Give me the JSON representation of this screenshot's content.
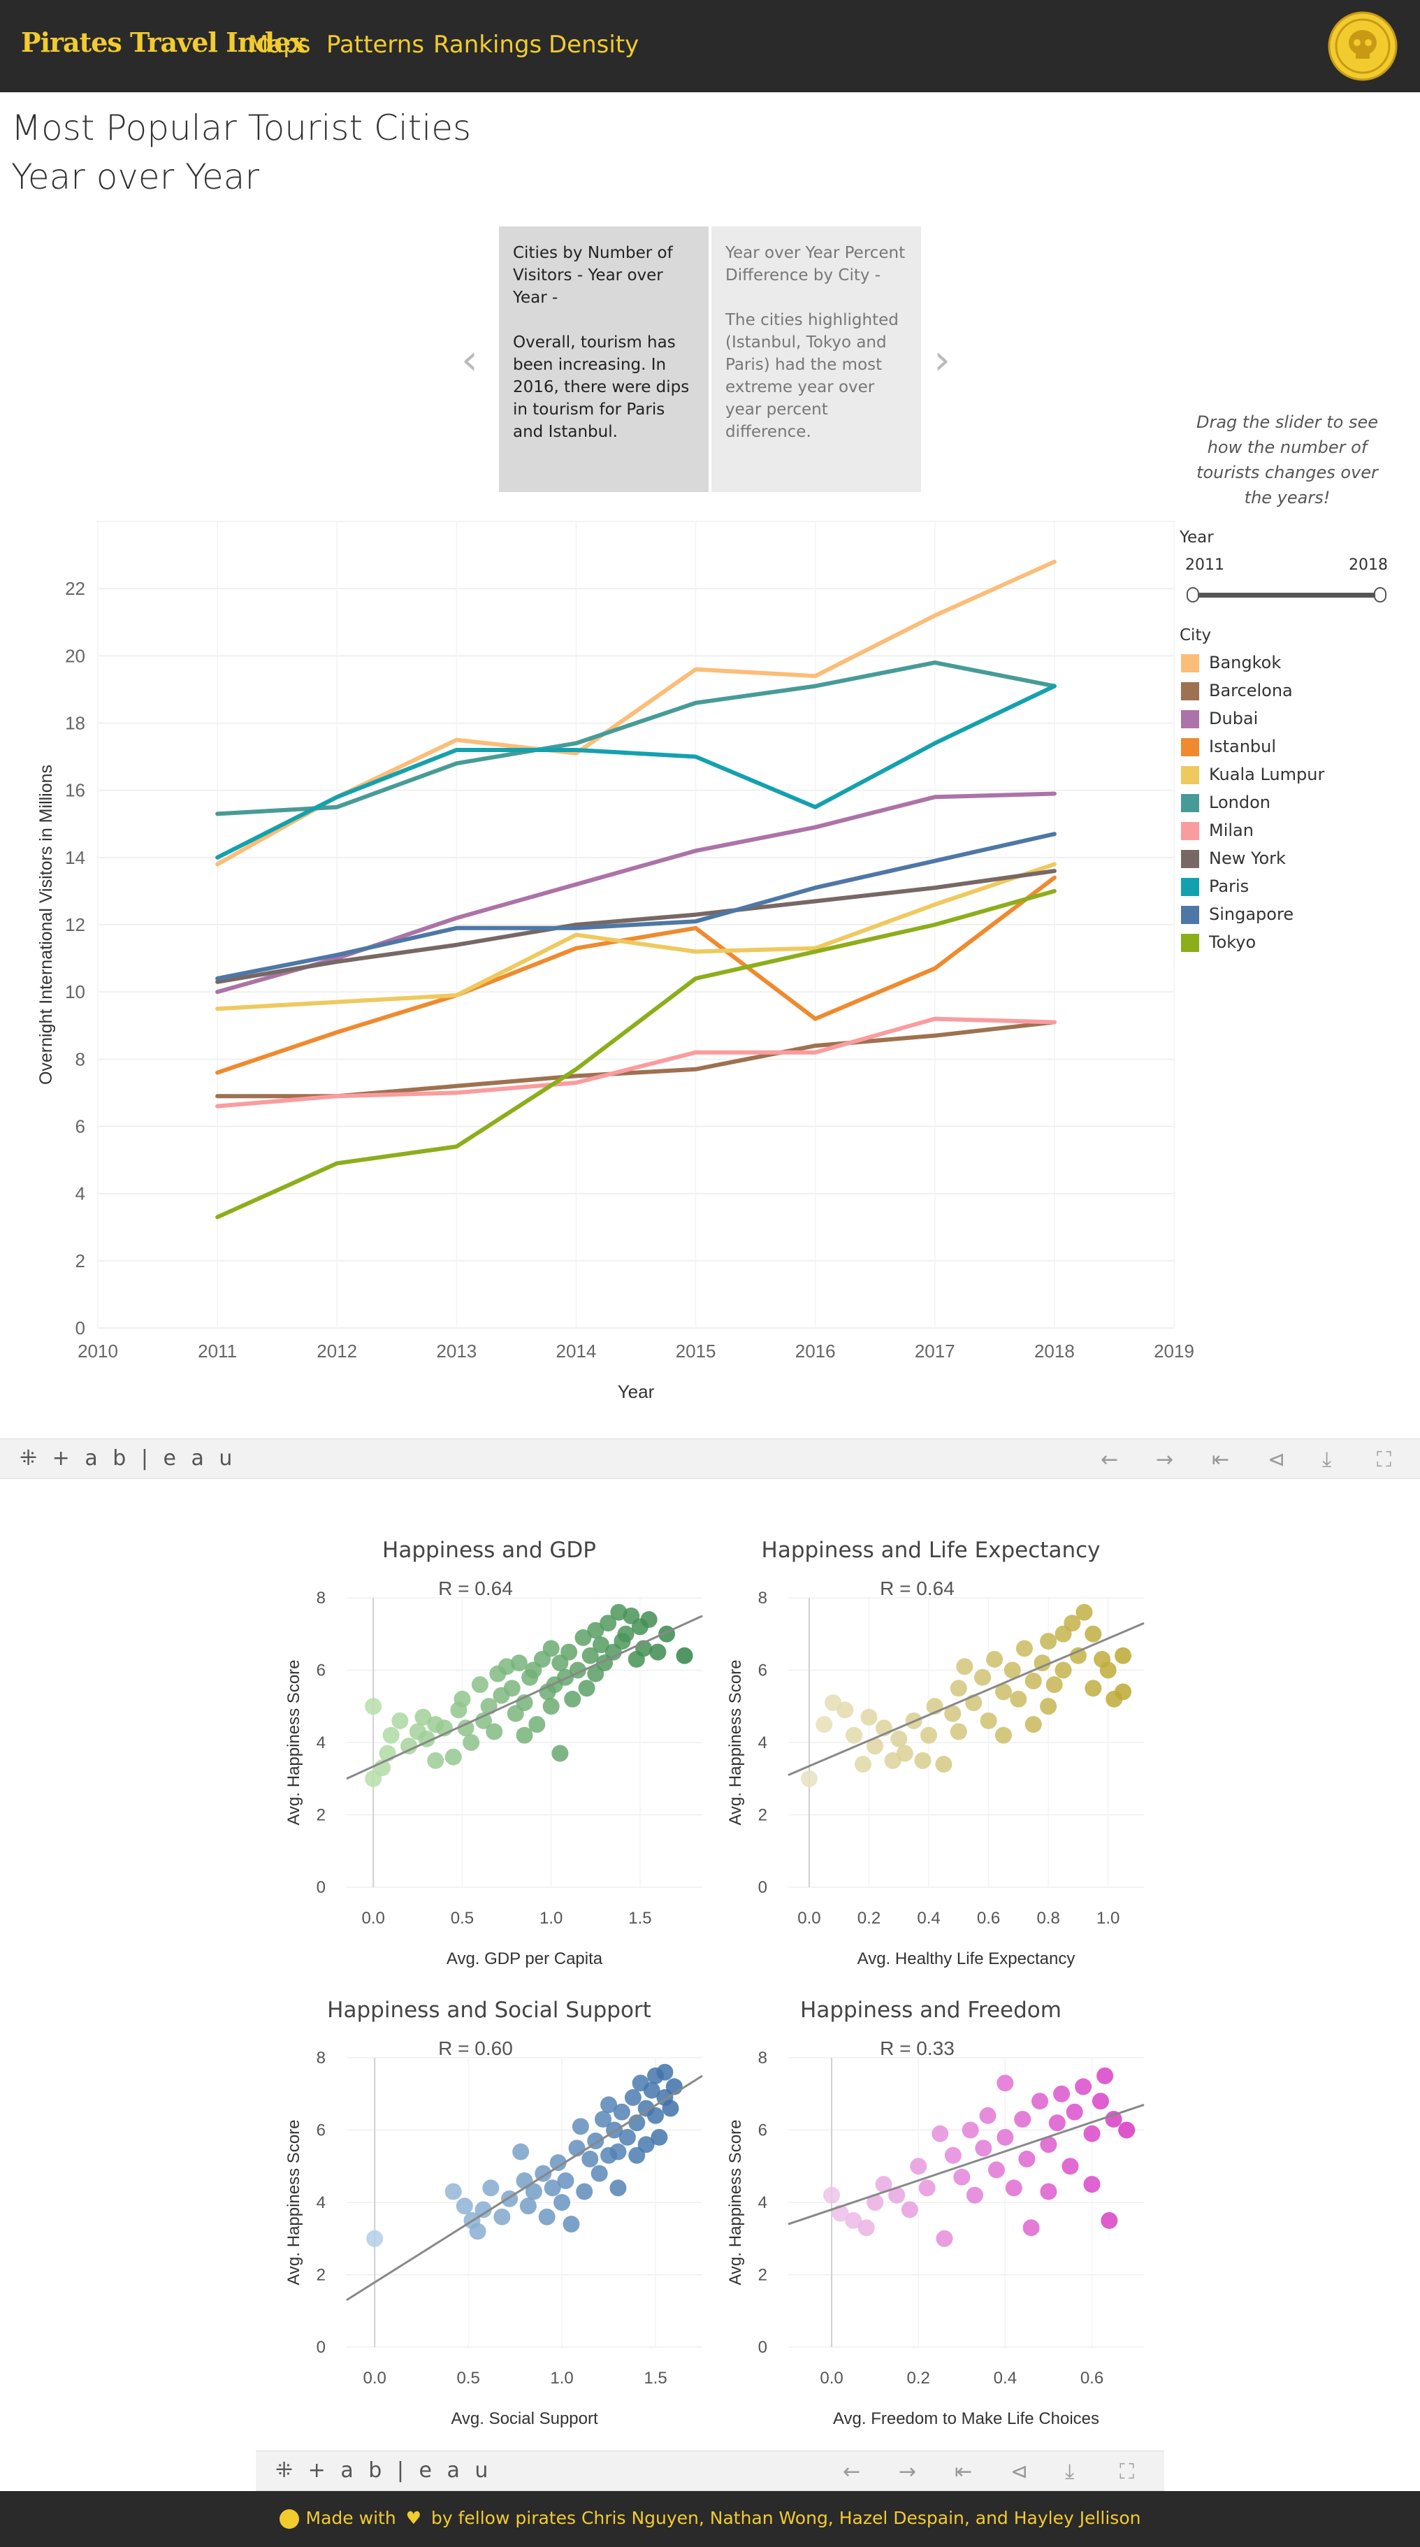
{
  "nav": {
    "brand": "Pirates Travel Index",
    "links": [
      "Maps",
      "Patterns",
      "Rankings",
      "Density"
    ]
  },
  "page": {
    "title_line1": "Most Popular Tourist Cities",
    "title_line2": "Year over Year"
  },
  "story": {
    "cards": [
      {
        "heading": "Cities by Number of Visitors - Year over Year -",
        "body": "Overall, tourism has been increasing. In 2016, there were  dips in tourism for Paris and Istanbul."
      },
      {
        "heading": "Year over Year Percent Difference by City -",
        "body": "The cities highlighted (Istanbul, Tokyo and Paris) had the most extreme year over year percent difference."
      }
    ],
    "prev_arrow": "‹",
    "next_arrow": "›"
  },
  "hint": "Drag the slider to see how the number of tourists changes over the years!",
  "filters": {
    "year_label": "Year",
    "year_min": "2011",
    "year_max": "2018",
    "city_label": "City"
  },
  "chart_data": [
    {
      "type": "line",
      "title": "",
      "xlabel": "Year",
      "ylabel": "Overnight International Visitors in Millions",
      "xlim": [
        2010,
        2019
      ],
      "ylim": [
        0,
        24
      ],
      "x_ticks": [
        2010,
        2011,
        2012,
        2013,
        2014,
        2015,
        2016,
        2017,
        2018,
        2019
      ],
      "y_ticks": [
        0,
        2,
        4,
        6,
        8,
        10,
        12,
        14,
        16,
        18,
        20,
        22
      ],
      "grid": true,
      "legend": "right",
      "x": [
        2011,
        2012,
        2013,
        2014,
        2015,
        2016,
        2017,
        2018
      ],
      "series": [
        {
          "name": "Bangkok",
          "color": "#fbbd78",
          "values": [
            13.8,
            15.8,
            17.5,
            17.1,
            19.6,
            19.4,
            21.2,
            22.8
          ]
        },
        {
          "name": "Barcelona",
          "color": "#9e7150",
          "values": [
            6.9,
            6.9,
            7.2,
            7.5,
            7.7,
            8.4,
            8.7,
            9.1
          ]
        },
        {
          "name": "Dubai",
          "color": "#ac73a8",
          "values": [
            10.0,
            11.0,
            12.2,
            13.2,
            14.2,
            14.9,
            15.8,
            15.9
          ]
        },
        {
          "name": "Istanbul",
          "color": "#ef8a2e",
          "values": [
            7.6,
            8.8,
            9.9,
            11.3,
            11.9,
            9.2,
            10.7,
            13.4
          ]
        },
        {
          "name": "Kuala Lumpur",
          "color": "#eec95e",
          "values": [
            9.5,
            9.7,
            9.9,
            11.7,
            11.2,
            11.3,
            12.6,
            13.8
          ]
        },
        {
          "name": "London",
          "color": "#479b97",
          "values": [
            15.3,
            15.5,
            16.8,
            17.4,
            18.6,
            19.1,
            19.8,
            19.1
          ]
        },
        {
          "name": "Milan",
          "color": "#fa9c9e",
          "values": [
            6.6,
            6.9,
            7.0,
            7.3,
            8.2,
            8.2,
            9.2,
            9.1
          ]
        },
        {
          "name": "New York",
          "color": "#776865",
          "values": [
            10.3,
            10.9,
            11.4,
            12.0,
            12.3,
            12.7,
            13.1,
            13.6
          ]
        },
        {
          "name": "Paris",
          "color": "#14a1ae",
          "values": [
            14.0,
            15.8,
            17.2,
            17.2,
            17.0,
            15.5,
            17.4,
            19.1
          ]
        },
        {
          "name": "Singapore",
          "color": "#4e77a6",
          "values": [
            10.4,
            11.1,
            11.9,
            11.9,
            12.1,
            13.1,
            13.9,
            14.7
          ]
        },
        {
          "name": "Tokyo",
          "color": "#8cae1a",
          "values": [
            3.3,
            4.9,
            5.4,
            7.7,
            10.4,
            11.2,
            12.0,
            13.0
          ]
        }
      ]
    },
    {
      "type": "scatter",
      "title": "Happiness and GDP",
      "annotation": "R = 0.64",
      "xlabel": "Avg. GDP per Capita",
      "ylabel": "Avg. Happiness Score",
      "xlim": [
        -0.15,
        1.85
      ],
      "ylim": [
        0,
        8
      ],
      "x_ticks": [
        "0.0",
        "0.5",
        "1.0",
        "1.5"
      ],
      "x_tick_values": [
        0,
        0.5,
        1.0,
        1.5
      ],
      "y_ticks": [
        0,
        2,
        4,
        6,
        8
      ],
      "trend": [
        [
          -0.15,
          3.0
        ],
        [
          1.85,
          7.5
        ]
      ],
      "color_light": "#c1e6b0",
      "color_dark": "#2b7f42",
      "points": [
        [
          0.0,
          5.0
        ],
        [
          0.0,
          3.0
        ],
        [
          0.05,
          3.3
        ],
        [
          0.08,
          3.7
        ],
        [
          0.1,
          4.2
        ],
        [
          0.15,
          4.6
        ],
        [
          0.2,
          3.9
        ],
        [
          0.25,
          4.3
        ],
        [
          0.28,
          4.7
        ],
        [
          0.3,
          4.1
        ],
        [
          0.35,
          4.5
        ],
        [
          0.35,
          3.5
        ],
        [
          0.4,
          4.4
        ],
        [
          0.45,
          3.6
        ],
        [
          0.48,
          4.9
        ],
        [
          0.5,
          5.2
        ],
        [
          0.52,
          4.4
        ],
        [
          0.55,
          4.0
        ],
        [
          0.6,
          5.6
        ],
        [
          0.62,
          4.6
        ],
        [
          0.65,
          5.0
        ],
        [
          0.68,
          4.3
        ],
        [
          0.7,
          5.9
        ],
        [
          0.72,
          5.3
        ],
        [
          0.75,
          6.1
        ],
        [
          0.78,
          5.5
        ],
        [
          0.8,
          4.8
        ],
        [
          0.82,
          6.2
        ],
        [
          0.85,
          5.1
        ],
        [
          0.85,
          4.2
        ],
        [
          0.88,
          5.8
        ],
        [
          0.9,
          6.0
        ],
        [
          0.92,
          4.5
        ],
        [
          0.95,
          6.3
        ],
        [
          0.98,
          5.4
        ],
        [
          1.0,
          5.0
        ],
        [
          1.0,
          6.6
        ],
        [
          1.02,
          5.6
        ],
        [
          1.05,
          3.7
        ],
        [
          1.05,
          6.2
        ],
        [
          1.08,
          5.8
        ],
        [
          1.1,
          6.5
        ],
        [
          1.12,
          5.2
        ],
        [
          1.15,
          6.0
        ],
        [
          1.18,
          6.9
        ],
        [
          1.2,
          5.5
        ],
        [
          1.22,
          6.4
        ],
        [
          1.25,
          7.1
        ],
        [
          1.25,
          5.9
        ],
        [
          1.28,
          6.7
        ],
        [
          1.3,
          6.2
        ],
        [
          1.32,
          7.3
        ],
        [
          1.35,
          6.5
        ],
        [
          1.38,
          7.6
        ],
        [
          1.4,
          6.8
        ],
        [
          1.42,
          7.0
        ],
        [
          1.45,
          7.5
        ],
        [
          1.48,
          6.3
        ],
        [
          1.5,
          7.2
        ],
        [
          1.52,
          6.6
        ],
        [
          1.55,
          7.4
        ],
        [
          1.6,
          6.5
        ],
        [
          1.65,
          7.0
        ],
        [
          1.75,
          6.4
        ]
      ]
    },
    {
      "type": "scatter",
      "title": "Happiness and Life Expectancy",
      "annotation": "R = 0.64",
      "xlabel": "Avg. Healthy Life Expectancy",
      "ylabel": "Avg. Happiness Score",
      "xlim": [
        -0.07,
        1.12
      ],
      "ylim": [
        0,
        8
      ],
      "x_ticks": [
        "0.0",
        "0.2",
        "0.4",
        "0.6",
        "0.8",
        "1.0"
      ],
      "x_tick_values": [
        0,
        0.2,
        0.4,
        0.6,
        0.8,
        1.0
      ],
      "y_ticks": [
        0,
        2,
        4,
        6,
        8
      ],
      "trend": [
        [
          -0.07,
          3.1
        ],
        [
          1.12,
          7.3
        ]
      ],
      "color_light": "#ebe5c8",
      "color_dark": "#b9a52a",
      "points": [
        [
          0.0,
          3.0
        ],
        [
          0.05,
          4.5
        ],
        [
          0.08,
          5.1
        ],
        [
          0.12,
          4.9
        ],
        [
          0.15,
          4.2
        ],
        [
          0.18,
          3.4
        ],
        [
          0.2,
          4.7
        ],
        [
          0.22,
          3.9
        ],
        [
          0.25,
          4.4
        ],
        [
          0.28,
          3.5
        ],
        [
          0.3,
          4.1
        ],
        [
          0.32,
          3.7
        ],
        [
          0.35,
          4.6
        ],
        [
          0.38,
          3.5
        ],
        [
          0.4,
          4.2
        ],
        [
          0.42,
          5.0
        ],
        [
          0.45,
          3.4
        ],
        [
          0.48,
          4.8
        ],
        [
          0.5,
          4.3
        ],
        [
          0.5,
          5.5
        ],
        [
          0.52,
          6.1
        ],
        [
          0.55,
          5.1
        ],
        [
          0.58,
          5.8
        ],
        [
          0.6,
          4.6
        ],
        [
          0.62,
          6.3
        ],
        [
          0.65,
          5.4
        ],
        [
          0.65,
          4.2
        ],
        [
          0.68,
          6.0
        ],
        [
          0.7,
          5.2
        ],
        [
          0.72,
          6.6
        ],
        [
          0.75,
          5.7
        ],
        [
          0.75,
          4.5
        ],
        [
          0.78,
          6.2
        ],
        [
          0.8,
          5.0
        ],
        [
          0.8,
          6.8
        ],
        [
          0.82,
          5.6
        ],
        [
          0.85,
          7.0
        ],
        [
          0.85,
          6.0
        ],
        [
          0.88,
          7.3
        ],
        [
          0.9,
          6.4
        ],
        [
          0.92,
          7.6
        ],
        [
          0.95,
          7.0
        ],
        [
          0.95,
          5.5
        ],
        [
          0.98,
          6.3
        ],
        [
          1.0,
          6.0
        ],
        [
          1.02,
          5.2
        ],
        [
          1.05,
          6.4
        ],
        [
          1.05,
          5.4
        ]
      ]
    },
    {
      "type": "scatter",
      "title": "Happiness and Social Support",
      "annotation": "R = 0.60",
      "xlabel": "Avg. Social Support",
      "ylabel": "Avg. Happiness Score",
      "xlim": [
        -0.15,
        1.75
      ],
      "ylim": [
        0,
        8
      ],
      "x_ticks": [
        "0.0",
        "0.5",
        "1.0",
        "1.5"
      ],
      "x_tick_values": [
        0,
        0.5,
        1.0,
        1.5
      ],
      "y_ticks": [
        0,
        2,
        4,
        6,
        8
      ],
      "trend": [
        [
          -0.15,
          1.3
        ],
        [
          1.75,
          7.5
        ]
      ],
      "color_light": "#bcd8ee",
      "color_dark": "#3267a2",
      "points": [
        [
          0.0,
          3.0
        ],
        [
          0.42,
          4.3
        ],
        [
          0.48,
          3.9
        ],
        [
          0.52,
          3.5
        ],
        [
          0.55,
          3.2
        ],
        [
          0.58,
          3.8
        ],
        [
          0.62,
          4.4
        ],
        [
          0.68,
          3.6
        ],
        [
          0.72,
          4.1
        ],
        [
          0.78,
          5.4
        ],
        [
          0.8,
          4.6
        ],
        [
          0.82,
          3.9
        ],
        [
          0.85,
          4.3
        ],
        [
          0.9,
          4.8
        ],
        [
          0.92,
          3.6
        ],
        [
          0.95,
          4.4
        ],
        [
          0.98,
          5.1
        ],
        [
          1.0,
          4.0
        ],
        [
          1.02,
          4.6
        ],
        [
          1.05,
          3.4
        ],
        [
          1.08,
          5.5
        ],
        [
          1.1,
          6.1
        ],
        [
          1.12,
          4.3
        ],
        [
          1.15,
          5.2
        ],
        [
          1.18,
          5.7
        ],
        [
          1.2,
          4.8
        ],
        [
          1.22,
          6.3
        ],
        [
          1.25,
          5.3
        ],
        [
          1.25,
          6.7
        ],
        [
          1.28,
          6.0
        ],
        [
          1.3,
          5.4
        ],
        [
          1.3,
          4.4
        ],
        [
          1.32,
          6.5
        ],
        [
          1.35,
          5.8
        ],
        [
          1.38,
          6.9
        ],
        [
          1.4,
          6.2
        ],
        [
          1.4,
          5.3
        ],
        [
          1.42,
          7.3
        ],
        [
          1.45,
          6.6
        ],
        [
          1.45,
          5.6
        ],
        [
          1.48,
          7.1
        ],
        [
          1.5,
          6.4
        ],
        [
          1.5,
          7.5
        ],
        [
          1.52,
          5.8
        ],
        [
          1.55,
          6.9
        ],
        [
          1.55,
          7.6
        ],
        [
          1.58,
          6.6
        ],
        [
          1.6,
          7.2
        ]
      ]
    },
    {
      "type": "scatter",
      "title": "Happiness and Freedom",
      "annotation": "R = 0.33",
      "xlabel": "Avg. Freedom to Make Life Choices",
      "ylabel": "Avg. Happiness Score",
      "xlim": [
        -0.1,
        0.72
      ],
      "ylim": [
        0,
        8
      ],
      "x_ticks": [
        "0.0",
        "0.2",
        "0.4",
        "0.6"
      ],
      "x_tick_values": [
        0,
        0.2,
        0.4,
        0.6
      ],
      "y_ticks": [
        0,
        2,
        4,
        6,
        8
      ],
      "trend": [
        [
          -0.1,
          3.4
        ],
        [
          0.72,
          6.7
        ]
      ],
      "color_light": "#f1d7ee",
      "color_dark": "#d52fc2",
      "points": [
        [
          0.0,
          4.2
        ],
        [
          0.02,
          3.7
        ],
        [
          0.05,
          3.5
        ],
        [
          0.08,
          3.3
        ],
        [
          0.1,
          4.0
        ],
        [
          0.12,
          4.5
        ],
        [
          0.15,
          4.2
        ],
        [
          0.18,
          3.8
        ],
        [
          0.2,
          5.0
        ],
        [
          0.22,
          4.4
        ],
        [
          0.25,
          5.9
        ],
        [
          0.26,
          3.0
        ],
        [
          0.28,
          5.3
        ],
        [
          0.3,
          4.7
        ],
        [
          0.32,
          6.0
        ],
        [
          0.33,
          4.2
        ],
        [
          0.35,
          5.5
        ],
        [
          0.36,
          6.4
        ],
        [
          0.38,
          4.9
        ],
        [
          0.4,
          5.8
        ],
        [
          0.4,
          7.3
        ],
        [
          0.42,
          4.4
        ],
        [
          0.44,
          6.3
        ],
        [
          0.45,
          5.2
        ],
        [
          0.46,
          3.3
        ],
        [
          0.48,
          6.8
        ],
        [
          0.5,
          5.6
        ],
        [
          0.5,
          4.3
        ],
        [
          0.52,
          6.2
        ],
        [
          0.53,
          7.0
        ],
        [
          0.55,
          5.0
        ],
        [
          0.56,
          6.5
        ],
        [
          0.58,
          7.2
        ],
        [
          0.6,
          5.9
        ],
        [
          0.6,
          4.5
        ],
        [
          0.62,
          6.8
        ],
        [
          0.63,
          7.5
        ],
        [
          0.64,
          3.5
        ],
        [
          0.65,
          6.3
        ],
        [
          0.68,
          6.0
        ]
      ]
    }
  ],
  "toolbar": {
    "logo": "⁜ + a b | e a u",
    "icons": [
      "←",
      "→",
      "⇤",
      "⊲",
      "⤓",
      "⛶"
    ]
  },
  "footer": {
    "prefix": "Made with",
    "suffix": "by fellow pirates Chris Nguyen, Nathan Wong, Hazel Despain, and Hayley Jellison"
  }
}
